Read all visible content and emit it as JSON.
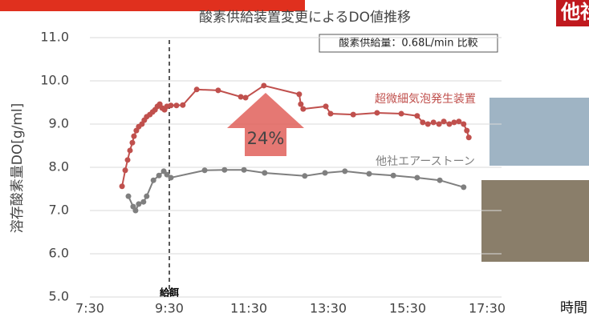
{
  "chart_data": {
    "type": "line",
    "title": "酸素供給装置変更によるDO値推移",
    "subtitle": "酸素供給量：0.68L/min 比較",
    "y_label": "溶存酸素量DO[g/ml]",
    "x_label": "時間",
    "tag": "他社エアーストーン",
    "feed_label": "給餌",
    "feed_x": 9.5,
    "increase_label": "24%",
    "xlim": [
      7.5,
      17.5
    ],
    "xticks": [
      {
        "value": 7.5,
        "label": "7:30"
      },
      {
        "value": 9.5,
        "label": "9:30"
      },
      {
        "value": 11.5,
        "label": "11:30"
      },
      {
        "value": 13.5,
        "label": "13:30"
      },
      {
        "value": 15.5,
        "label": "15:30"
      },
      {
        "value": 17.5,
        "label": "17:30"
      }
    ],
    "ylim": [
      5,
      11
    ],
    "yticks": [
      {
        "value": 5,
        "label": "5.0"
      },
      {
        "value": 6,
        "label": "6.0"
      },
      {
        "value": 7,
        "label": "7.0"
      },
      {
        "value": 8,
        "label": "8.0"
      },
      {
        "value": 9,
        "label": "9.0"
      },
      {
        "value": 10,
        "label": "10.0"
      },
      {
        "value": 11,
        "label": "11.0"
      }
    ],
    "grid": true,
    "series": [
      {
        "name": "超微細気泡発生装置",
        "color": "#c0504d",
        "x": [
          8.31,
          8.39,
          8.45,
          8.51,
          8.57,
          8.61,
          8.67,
          8.73,
          8.81,
          8.87,
          8.93,
          9.01,
          9.08,
          9.14,
          9.2,
          9.26,
          9.32,
          9.38,
          9.44,
          9.54,
          9.68,
          9.84,
          10.19,
          10.73,
          11.3,
          11.42,
          11.88,
          12.77,
          12.81,
          12.87,
          13.44,
          13.56,
          14.13,
          14.73,
          15.34,
          15.74,
          15.88,
          16.01,
          16.15,
          16.29,
          16.41,
          16.55,
          16.67,
          16.79,
          16.91,
          16.99,
          17.04
        ],
        "values": [
          7.56,
          7.93,
          8.17,
          8.39,
          8.57,
          8.72,
          8.85,
          8.94,
          9.0,
          9.09,
          9.17,
          9.22,
          9.28,
          9.33,
          9.41,
          9.46,
          9.37,
          9.33,
          9.41,
          9.43,
          9.43,
          9.44,
          9.8,
          9.78,
          9.63,
          9.61,
          9.89,
          9.69,
          9.46,
          9.35,
          9.41,
          9.24,
          9.22,
          9.26,
          9.24,
          9.19,
          9.04,
          9.0,
          9.04,
          9.0,
          9.06,
          9.0,
          9.04,
          9.06,
          9.0,
          8.85,
          8.69
        ]
      },
      {
        "name": "他社エアーストーン",
        "color": "#7f7f7f",
        "x": [
          8.47,
          8.59,
          8.65,
          8.73,
          8.85,
          8.93,
          9.1,
          9.24,
          9.36,
          9.44,
          9.54,
          10.39,
          10.89,
          11.38,
          11.9,
          12.91,
          13.42,
          13.92,
          14.53,
          15.14,
          15.74,
          16.31,
          16.91
        ],
        "values": [
          7.33,
          7.09,
          7.0,
          7.15,
          7.2,
          7.33,
          7.7,
          7.81,
          7.91,
          7.83,
          7.76,
          7.93,
          7.94,
          7.94,
          7.87,
          7.8,
          7.87,
          7.91,
          7.85,
          7.81,
          7.76,
          7.7,
          7.54
        ]
      }
    ]
  }
}
